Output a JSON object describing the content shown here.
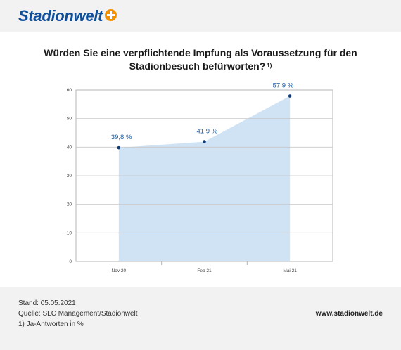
{
  "header": {
    "logo_text": "Stadionwelt",
    "logo_plus_color": "#f39200",
    "logo_color": "#0f4f9a"
  },
  "chart_data": {
    "type": "area",
    "title": "Würden Sie eine verpflichtende Impfung als Voraussetzung für den Stadionbesuch befürworten?",
    "title_line1": "Würden Sie eine verpflichtende Impfung als Voraussetzung für den",
    "title_line2": "Stadionbesuch befürworten?",
    "title_footnote": "1)",
    "categories": [
      "Nov 20",
      "Feb 21",
      "Mai 21"
    ],
    "values": [
      39.8,
      41.9,
      57.9
    ],
    "data_labels": [
      "39,8 %",
      "41,9 %",
      "57,9 %"
    ],
    "y_ticks": [
      0,
      10,
      20,
      30,
      40,
      50,
      60
    ],
    "ylim": [
      0,
      60
    ],
    "grid": true,
    "fill_color": "#cfe3f5",
    "point_color": "#0d3a78",
    "label_color": "#1f5fa8"
  },
  "footer": {
    "stand": "Stand: 05.05.2021",
    "quelle": "Quelle: SLC Management/Stadionwelt",
    "note": "1) Ja-Antworten in %",
    "url": "www.stadionwelt.de"
  }
}
